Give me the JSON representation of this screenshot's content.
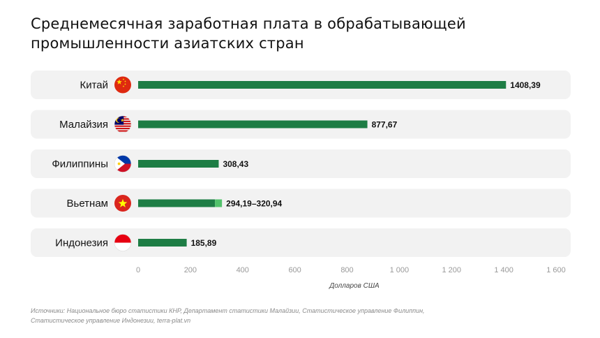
{
  "title": {
    "line1": "Среднемесячная заработная плата в обрабатывающей",
    "line2": "промышленности азиатских стран"
  },
  "chart_data": {
    "type": "bar",
    "orientation": "horizontal",
    "categories": [
      "Китай",
      "Малайзия",
      "Филиппины",
      "Вьетнам",
      "Индонезия"
    ],
    "flags": [
      "china-flag-icon",
      "malaysia-flag-icon",
      "philippines-flag-icon",
      "vietnam-flag-icon",
      "indonesia-flag-icon"
    ],
    "bars": [
      {
        "low": 1408.39,
        "high": 1408.39,
        "label": "1408,39"
      },
      {
        "low": 877.67,
        "high": 877.67,
        "label": "877,67"
      },
      {
        "low": 308.43,
        "high": 308.43,
        "label": "308,43"
      },
      {
        "low": 294.19,
        "high": 320.94,
        "label": "294,19–320,94"
      },
      {
        "low": 185.89,
        "high": 185.89,
        "label": "185,89"
      }
    ],
    "xlim": [
      0,
      1600
    ],
    "xticks": [
      0,
      200,
      400,
      600,
      800,
      1000,
      1200,
      1400,
      1600
    ],
    "xtick_labels": [
      "0",
      "200",
      "400",
      "600",
      "800",
      "1 000",
      "1 200",
      "1 400",
      "1 600"
    ],
    "xlabel": "Долларов США",
    "colors": {
      "bar": "#1e7d45",
      "range": "#52c26b",
      "row_background": "#f2f2f2"
    }
  },
  "footnote": {
    "line1": "Источники: Национальное бюро статистики КНР, Департамент статистики Малайзии, Статистическое управление Филиппин,",
    "line2": "Статистическое управление Индонезии, terra-plat.vn"
  }
}
